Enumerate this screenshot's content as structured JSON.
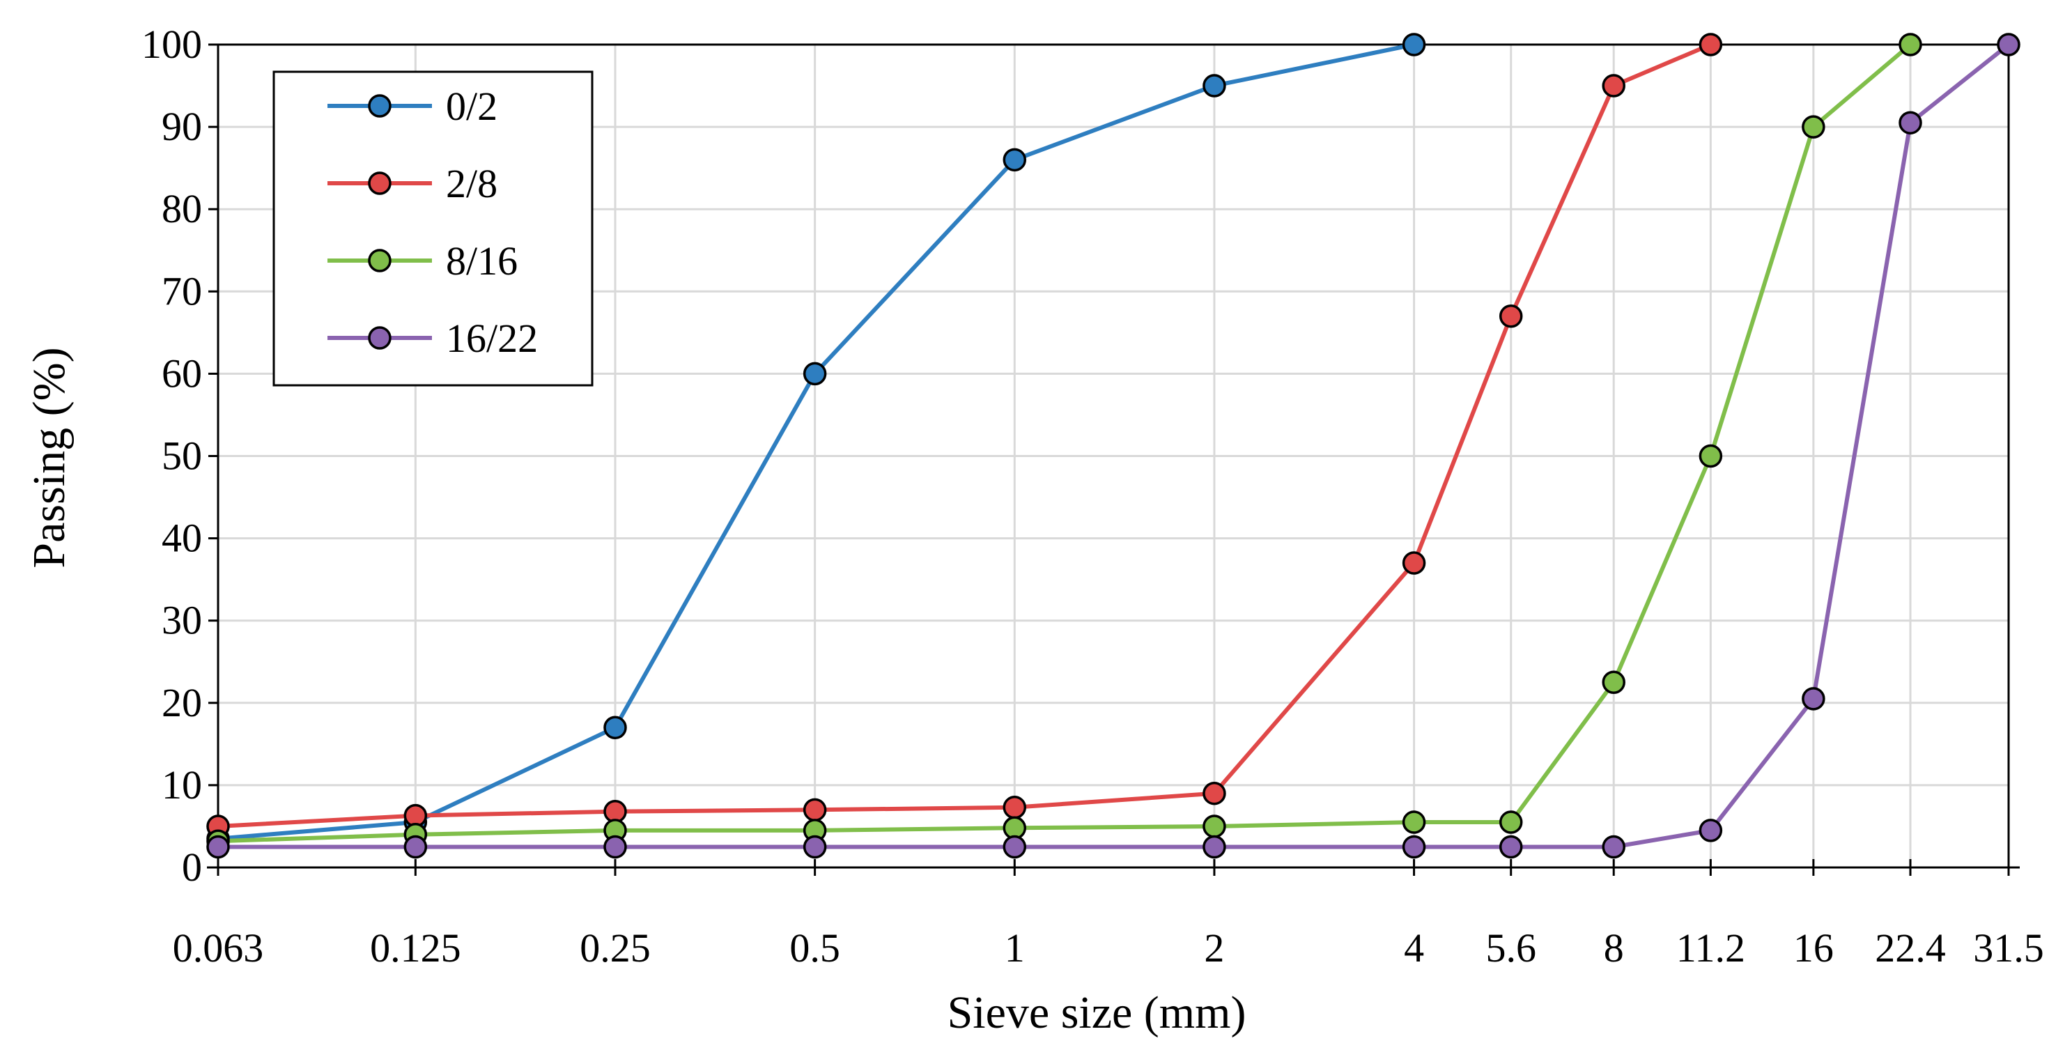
{
  "chart_data": {
    "type": "line",
    "title": "",
    "xlabel": "Sieve size (mm)",
    "ylabel": "Passing (%)",
    "x_scale": "log",
    "categories": [
      "0.063",
      "0.125",
      "0.25",
      "0.5",
      "1",
      "2",
      "4",
      "5.6",
      "8",
      "11.2",
      "16",
      "22.4",
      "31.5"
    ],
    "x": [
      0.063,
      0.125,
      0.25,
      0.5,
      1,
      2,
      4,
      5.6,
      8,
      11.2,
      16,
      22.4,
      31.5
    ],
    "ylim": [
      0,
      100
    ],
    "yticks": [
      "0",
      "10",
      "20",
      "30",
      "40",
      "50",
      "60",
      "70",
      "80",
      "90",
      "100"
    ],
    "grid": true,
    "legend_position": "top-left",
    "series": [
      {
        "name": "0/2",
        "color": "#2E7EC0",
        "points": [
          [
            0.063,
            3.5
          ],
          [
            0.125,
            5.5
          ],
          [
            0.25,
            17
          ],
          [
            0.5,
            60
          ],
          [
            1,
            86
          ],
          [
            2,
            95
          ],
          [
            4,
            100
          ]
        ]
      },
      {
        "name": "2/8",
        "color": "#E04848",
        "points": [
          [
            0.063,
            5
          ],
          [
            0.125,
            6.3
          ],
          [
            0.25,
            6.8
          ],
          [
            0.5,
            7
          ],
          [
            1,
            7.3
          ],
          [
            2,
            9
          ],
          [
            4,
            37
          ],
          [
            5.6,
            67
          ],
          [
            8,
            95
          ],
          [
            11.2,
            100
          ]
        ]
      },
      {
        "name": "8/16",
        "color": "#80BE4A",
        "points": [
          [
            0.063,
            3.2
          ],
          [
            0.125,
            4
          ],
          [
            0.25,
            4.5
          ],
          [
            0.5,
            4.5
          ],
          [
            1,
            4.8
          ],
          [
            2,
            5
          ],
          [
            4,
            5.5
          ],
          [
            5.6,
            5.5
          ],
          [
            8,
            22.5
          ],
          [
            11.2,
            50
          ],
          [
            16,
            90
          ],
          [
            22.4,
            100
          ]
        ]
      },
      {
        "name": "16/22",
        "color": "#8A63AF",
        "points": [
          [
            0.063,
            2.5
          ],
          [
            0.125,
            2.5
          ],
          [
            0.25,
            2.5
          ],
          [
            0.5,
            2.5
          ],
          [
            1,
            2.5
          ],
          [
            2,
            2.5
          ],
          [
            4,
            2.5
          ],
          [
            5.6,
            2.5
          ],
          [
            8,
            2.5
          ],
          [
            11.2,
            4.5
          ],
          [
            16,
            20.5
          ],
          [
            22.4,
            90.5
          ],
          [
            31.5,
            100
          ]
        ]
      }
    ]
  }
}
